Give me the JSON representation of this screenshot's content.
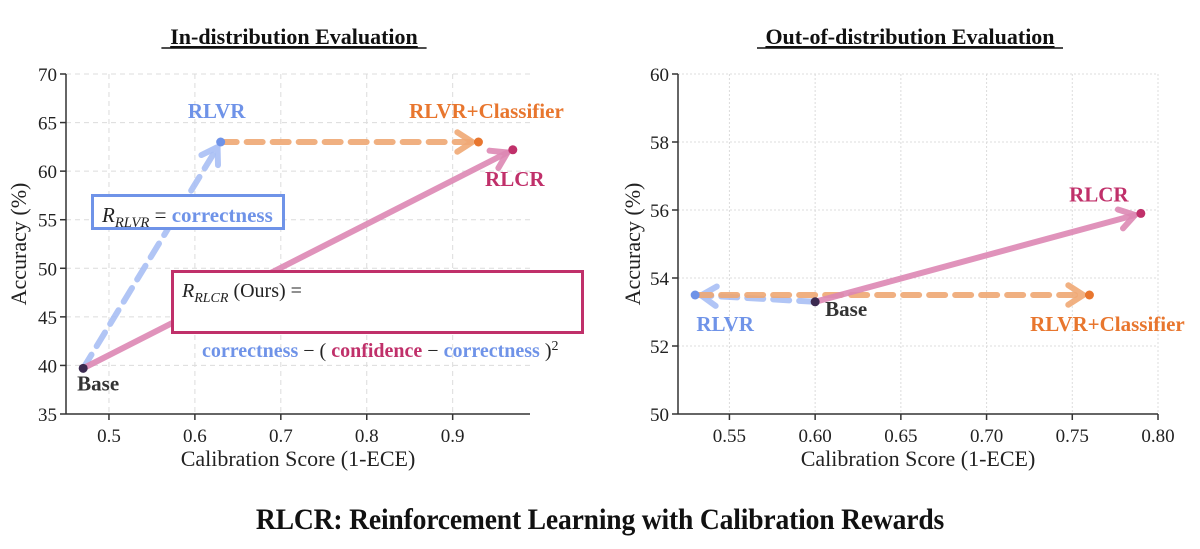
{
  "suptitle": "RLCR: Reinforcement Learning with Calibration Rewards",
  "colors": {
    "rlvr": "#6f93e8",
    "rlvr_arrow": "#a9bff5",
    "classifier": "#e8762e",
    "classifier_arrow": "#efa874",
    "rlcr": "#c0306a",
    "rlcr_arrow": "#dd88b4",
    "base": "#3b2a50",
    "base_label": "#333333",
    "rlvr_box_border": "#6f93e8",
    "rlcr_box_border": "#c0306a"
  },
  "annotations": {
    "rlvr_box": {
      "R": "R",
      "subscript": "RLVR",
      "equals": " = ",
      "term": "correctness"
    },
    "rlcr_box": {
      "R": "R",
      "subscript": "RLCR",
      "suffix": " (Ours) =",
      "term1": "correctness",
      "op1": " − ( ",
      "term2": "confidence",
      "op2": " − ",
      "term3": "correctness",
      "close": " )",
      "power": "2"
    }
  },
  "chart_data": [
    {
      "type": "scatter",
      "title": "In-distribution Evaluation",
      "xlabel": "Calibration Score (1-ECE)",
      "ylabel": "Accuracy (%)",
      "xlim": [
        0.45,
        0.99
      ],
      "ylim": [
        35,
        70
      ],
      "xticks": [
        0.5,
        0.6,
        0.7,
        0.8,
        0.9
      ],
      "xtick_labels": [
        "0.5",
        "0.6",
        "0.7",
        "0.8",
        "0.9"
      ],
      "yticks": [
        35,
        40,
        45,
        50,
        55,
        60,
        65,
        70
      ],
      "ytick_labels": [
        "35",
        "40",
        "45",
        "50",
        "55",
        "60",
        "65",
        "70"
      ],
      "grid": true,
      "points": [
        {
          "name": "Base",
          "x": 0.47,
          "y": 39.7,
          "color_key": "base",
          "label_pos": "below"
        },
        {
          "name": "RLVR",
          "x": 0.63,
          "y": 63.0,
          "color_key": "rlvr",
          "label_pos": "above"
        },
        {
          "name": "RLVR+Classifier",
          "x": 0.93,
          "y": 63.0,
          "color_key": "classifier",
          "label_pos": "above"
        },
        {
          "name": "RLCR",
          "x": 0.97,
          "y": 62.2,
          "color_key": "rlcr",
          "label_pos": "below"
        }
      ],
      "arrows": [
        {
          "from": "Base",
          "to": "RLVR",
          "style": "dashed",
          "color_key": "rlvr_arrow"
        },
        {
          "from": "RLVR",
          "to": "RLVR+Classifier",
          "style": "dashed",
          "color_key": "classifier_arrow"
        },
        {
          "from": "Base",
          "to": "RLCR",
          "style": "solid",
          "color_key": "rlcr_arrow"
        }
      ]
    },
    {
      "type": "scatter",
      "title": "Out-of-distribution Evaluation",
      "xlabel": "Calibration Score (1-ECE)",
      "ylabel": "Accuracy (%)",
      "xlim": [
        0.52,
        0.8
      ],
      "ylim": [
        50,
        60
      ],
      "xticks": [
        0.55,
        0.6,
        0.65,
        0.7,
        0.75,
        0.8
      ],
      "xtick_labels": [
        "0.55",
        "0.60",
        "0.65",
        "0.70",
        "0.75",
        "0.80"
      ],
      "yticks": [
        50,
        52,
        54,
        56,
        58,
        60
      ],
      "ytick_labels": [
        "50",
        "52",
        "54",
        "56",
        "58",
        "60"
      ],
      "grid": true,
      "points": [
        {
          "name": "Base",
          "x": 0.6,
          "y": 53.3,
          "color_key": "base",
          "label_pos": "right"
        },
        {
          "name": "RLVR",
          "x": 0.53,
          "y": 53.5,
          "color_key": "rlvr",
          "label_pos": "below"
        },
        {
          "name": "RLVR+Classifier",
          "x": 0.76,
          "y": 53.5,
          "color_key": "classifier",
          "label_pos": "below"
        },
        {
          "name": "RLCR",
          "x": 0.79,
          "y": 55.9,
          "color_key": "rlcr",
          "label_pos": "above"
        }
      ],
      "arrows": [
        {
          "from": "Base",
          "to": "RLVR",
          "style": "dashed",
          "color_key": "rlvr_arrow"
        },
        {
          "from": "RLVR",
          "to": "RLVR+Classifier",
          "style": "dashed",
          "color_key": "classifier_arrow"
        },
        {
          "from": "Base",
          "to": "RLCR",
          "style": "solid",
          "color_key": "rlcr_arrow"
        }
      ]
    }
  ]
}
